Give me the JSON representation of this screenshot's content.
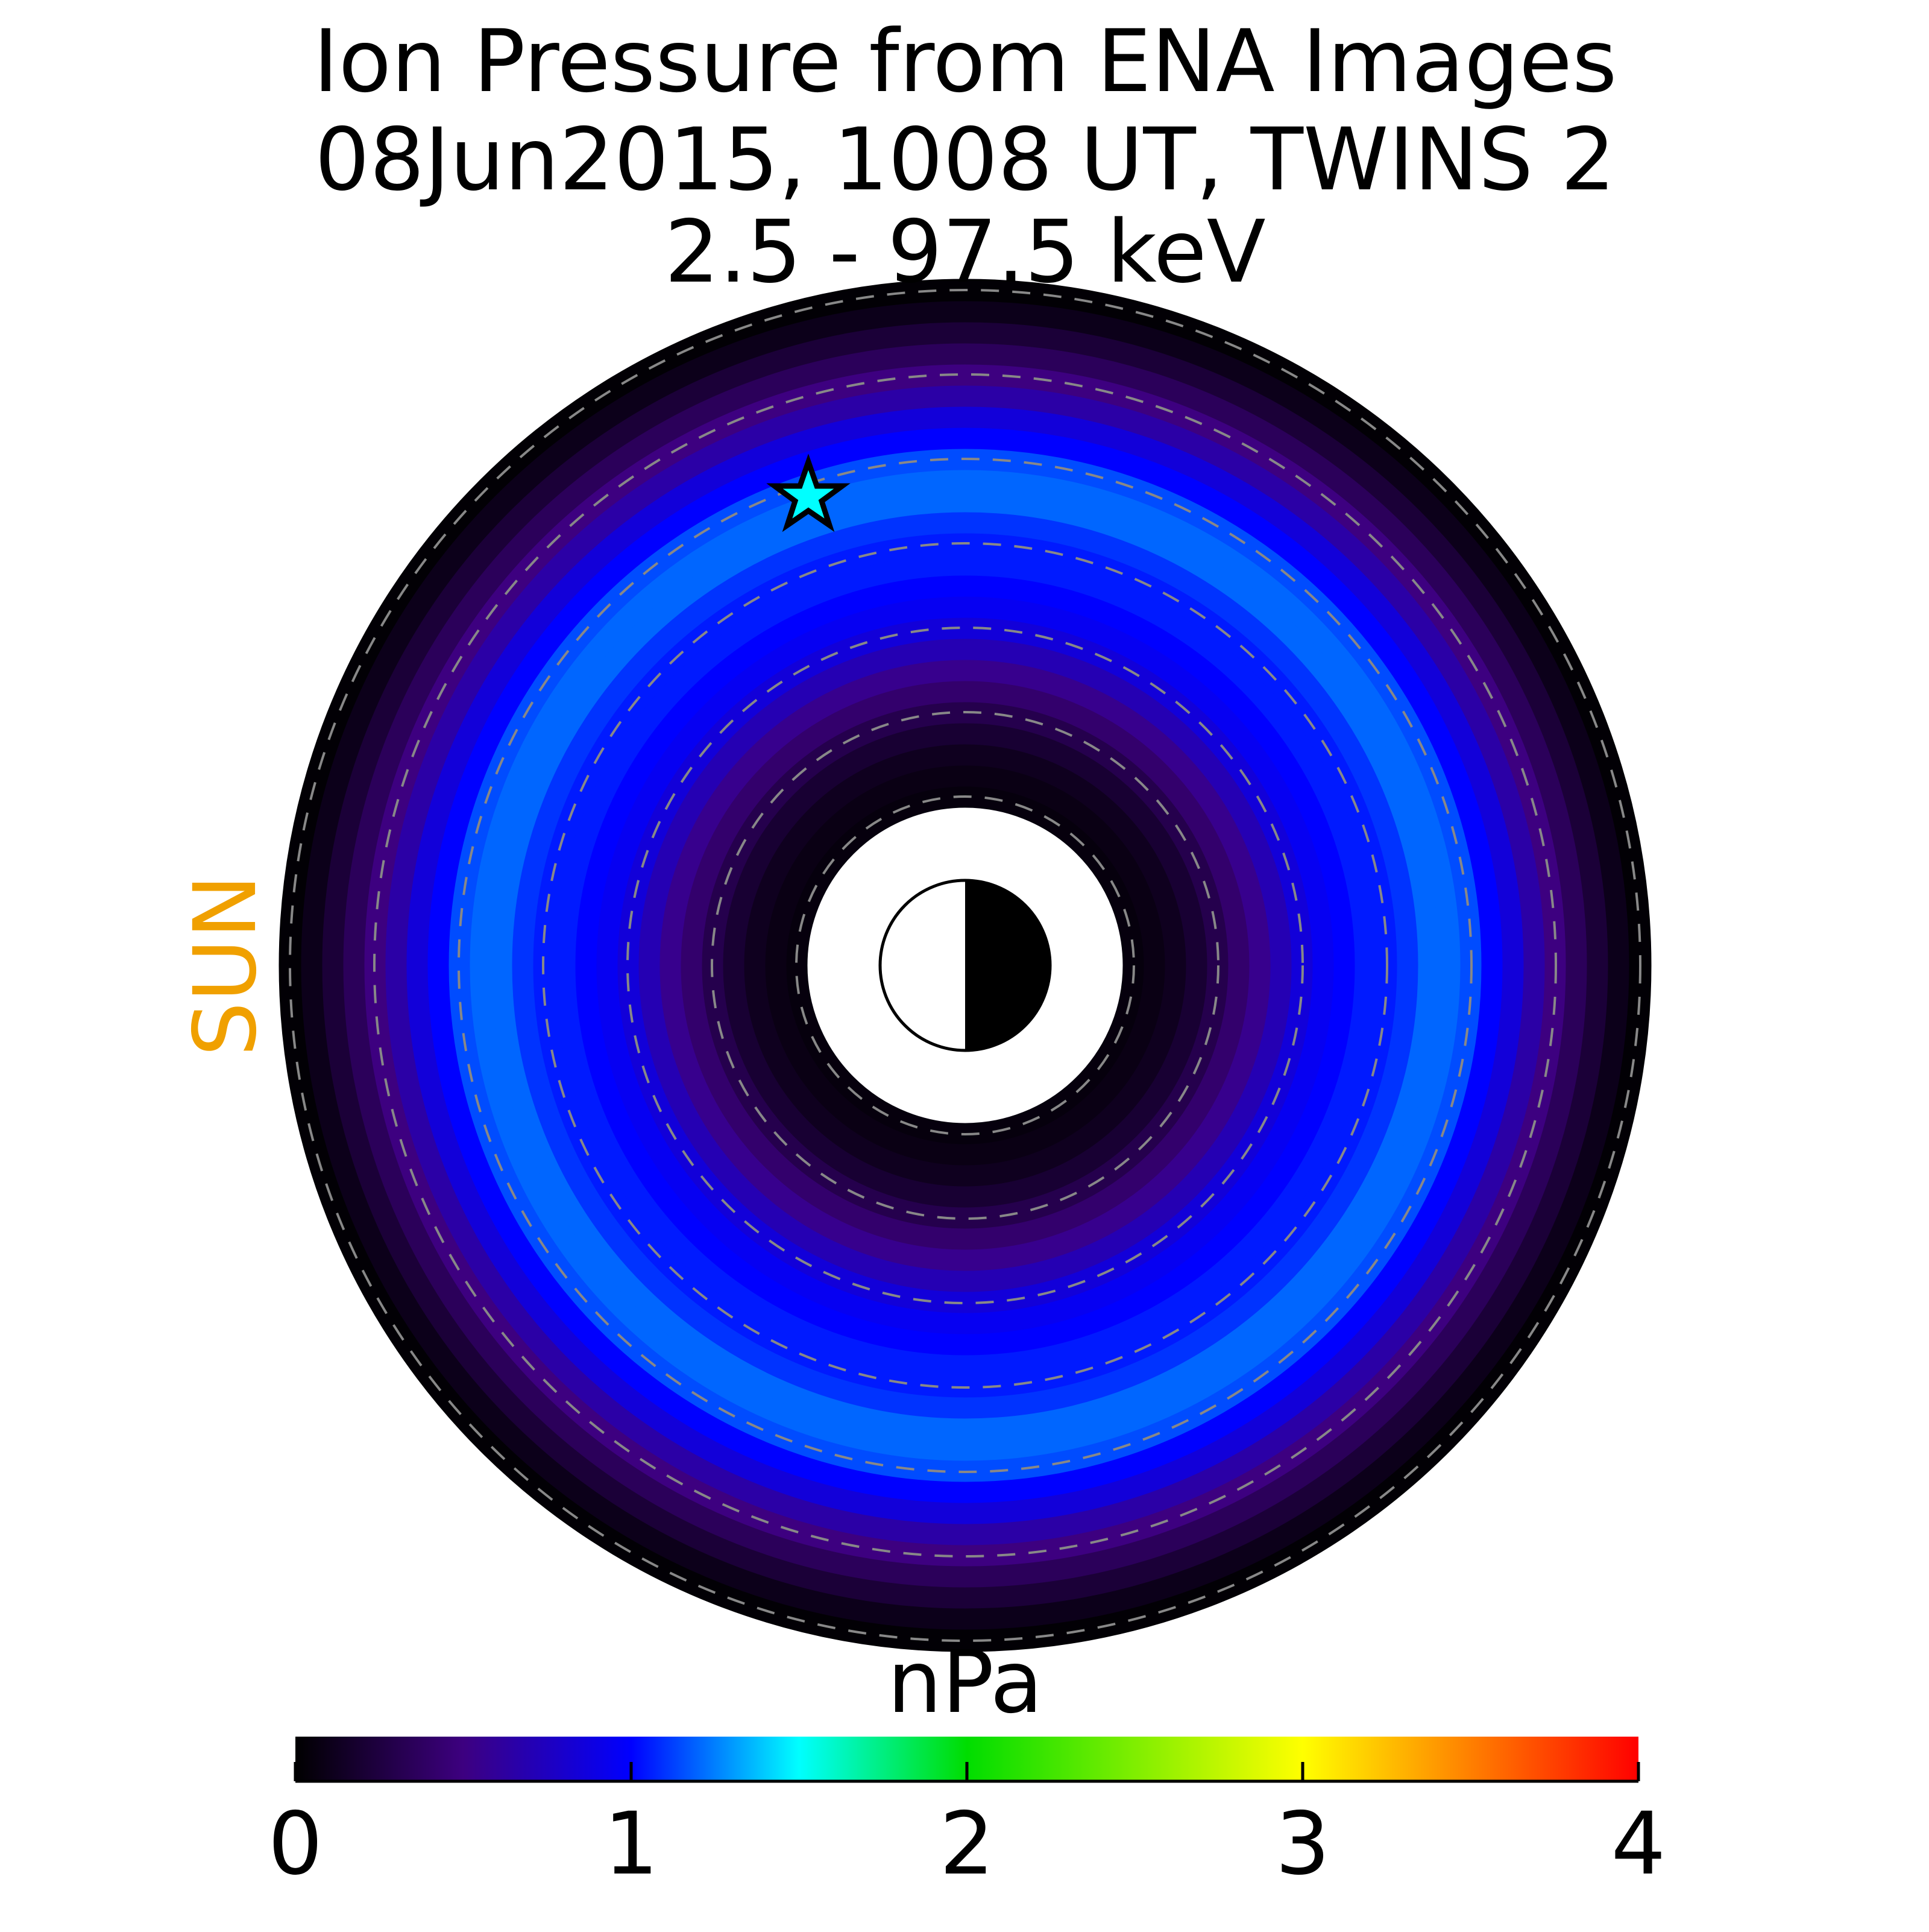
{
  "chart_data": {
    "type": "polar_heatmap",
    "title": [
      "Ion Pressure from  ENA Images",
      "08Jun2015, 1008 UT,  TWINS 2",
      "2.5 - 97.5 keV"
    ],
    "sun_label": "SUN",
    "colorbar_label": "nPa",
    "clim": [
      0,
      4
    ],
    "cticks": [
      0,
      1,
      2,
      3,
      4
    ],
    "colormap": [
      {
        "value": 0,
        "color": "#000000"
      },
      {
        "value": 0.5,
        "color": "#3d0080"
      },
      {
        "value": 1,
        "color": "#0000ff"
      },
      {
        "value": 1.5,
        "color": "#00ffff"
      },
      {
        "value": 2,
        "color": "#00dd00"
      },
      {
        "value": 3,
        "color": "#ffff00"
      },
      {
        "value": 4,
        "color": "#ff0000"
      }
    ],
    "rlim": [
      0,
      8
    ],
    "rgrid": [
      2,
      3,
      4,
      5,
      6,
      7,
      8
    ],
    "r": [
      2,
      2.25,
      2.5,
      2.75,
      3,
      3.25,
      3.5,
      3.75,
      4,
      4.25,
      4.5,
      4.75,
      5,
      5.25,
      5.5,
      5.75,
      6,
      6.25,
      6.5,
      6.75,
      7,
      7.25,
      7.5,
      7.75,
      8
    ],
    "values": [
      0.05,
      0.08,
      0.12,
      0.2,
      0.3,
      0.42,
      0.55,
      0.7,
      0.85,
      0.95,
      1.0,
      1.05,
      1.05,
      1.1,
      1.2,
      1.2,
      1.15,
      1.0,
      0.85,
      0.65,
      0.5,
      0.35,
      0.22,
      0.1,
      0.02
    ]
  }
}
